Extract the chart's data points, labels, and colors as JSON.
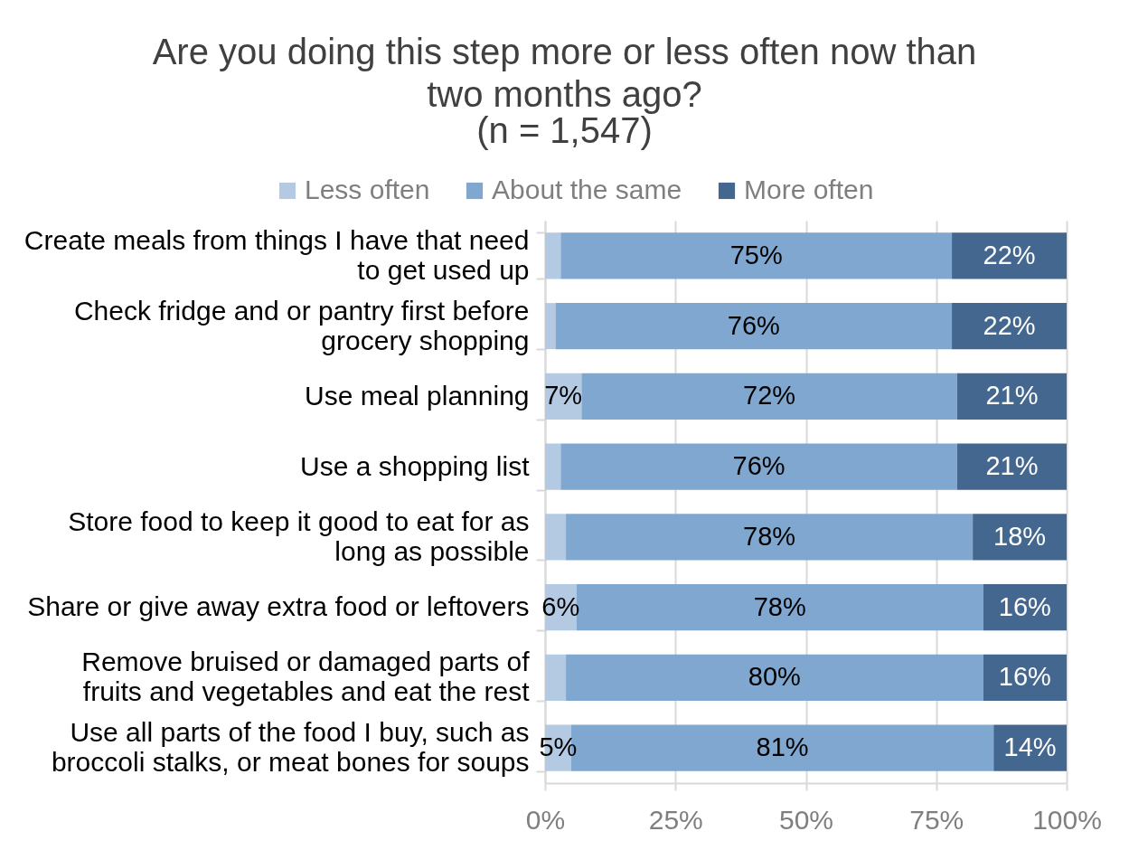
{
  "chart_data": {
    "type": "bar",
    "orientation": "horizontal",
    "stacked": true,
    "title": "Are you doing this step more or less often now than two months ago?",
    "subtitle": "(n = 1,547)",
    "categories": [
      "Create meals from things I have that need to get used up",
      "Check fridge and or pantry first before grocery shopping",
      "Use meal planning",
      "Use a shopping list",
      "Store food to keep it good to eat for as long as possible",
      "Share or give away extra food or leftovers",
      "Remove bruised or damaged parts of fruits and vegetables and eat the rest",
      "Use all parts of the food I buy, such as broccoli stalks, or meat bones for soups"
    ],
    "series": [
      {
        "name": "Less often",
        "color": "#b4cae3",
        "values": [
          3,
          2,
          7,
          3,
          4,
          6,
          4,
          5
        ],
        "value_labels": [
          null,
          null,
          "7%",
          null,
          null,
          "6%",
          null,
          "5%"
        ]
      },
      {
        "name": "About the same",
        "color": "#7fa7cf",
        "values": [
          75,
          76,
          72,
          76,
          78,
          78,
          80,
          81
        ],
        "value_labels": [
          "75%",
          "76%",
          "72%",
          "76%",
          "78%",
          "78%",
          "80%",
          "81%"
        ]
      },
      {
        "name": "More often",
        "color": "#44678f",
        "values": [
          22,
          22,
          21,
          21,
          18,
          16,
          16,
          14
        ],
        "value_labels": [
          "22%",
          "22%",
          "21%",
          "21%",
          "18%",
          "16%",
          "16%",
          "14%"
        ]
      }
    ],
    "xlim": [
      0,
      100
    ],
    "xticks": [
      {
        "value": 0,
        "label": "0%"
      },
      {
        "value": 25,
        "label": "25%"
      },
      {
        "value": 50,
        "label": "50%"
      },
      {
        "value": 75,
        "label": "75%"
      },
      {
        "value": 100,
        "label": "100%"
      }
    ],
    "grid": "x",
    "legend": "top"
  }
}
